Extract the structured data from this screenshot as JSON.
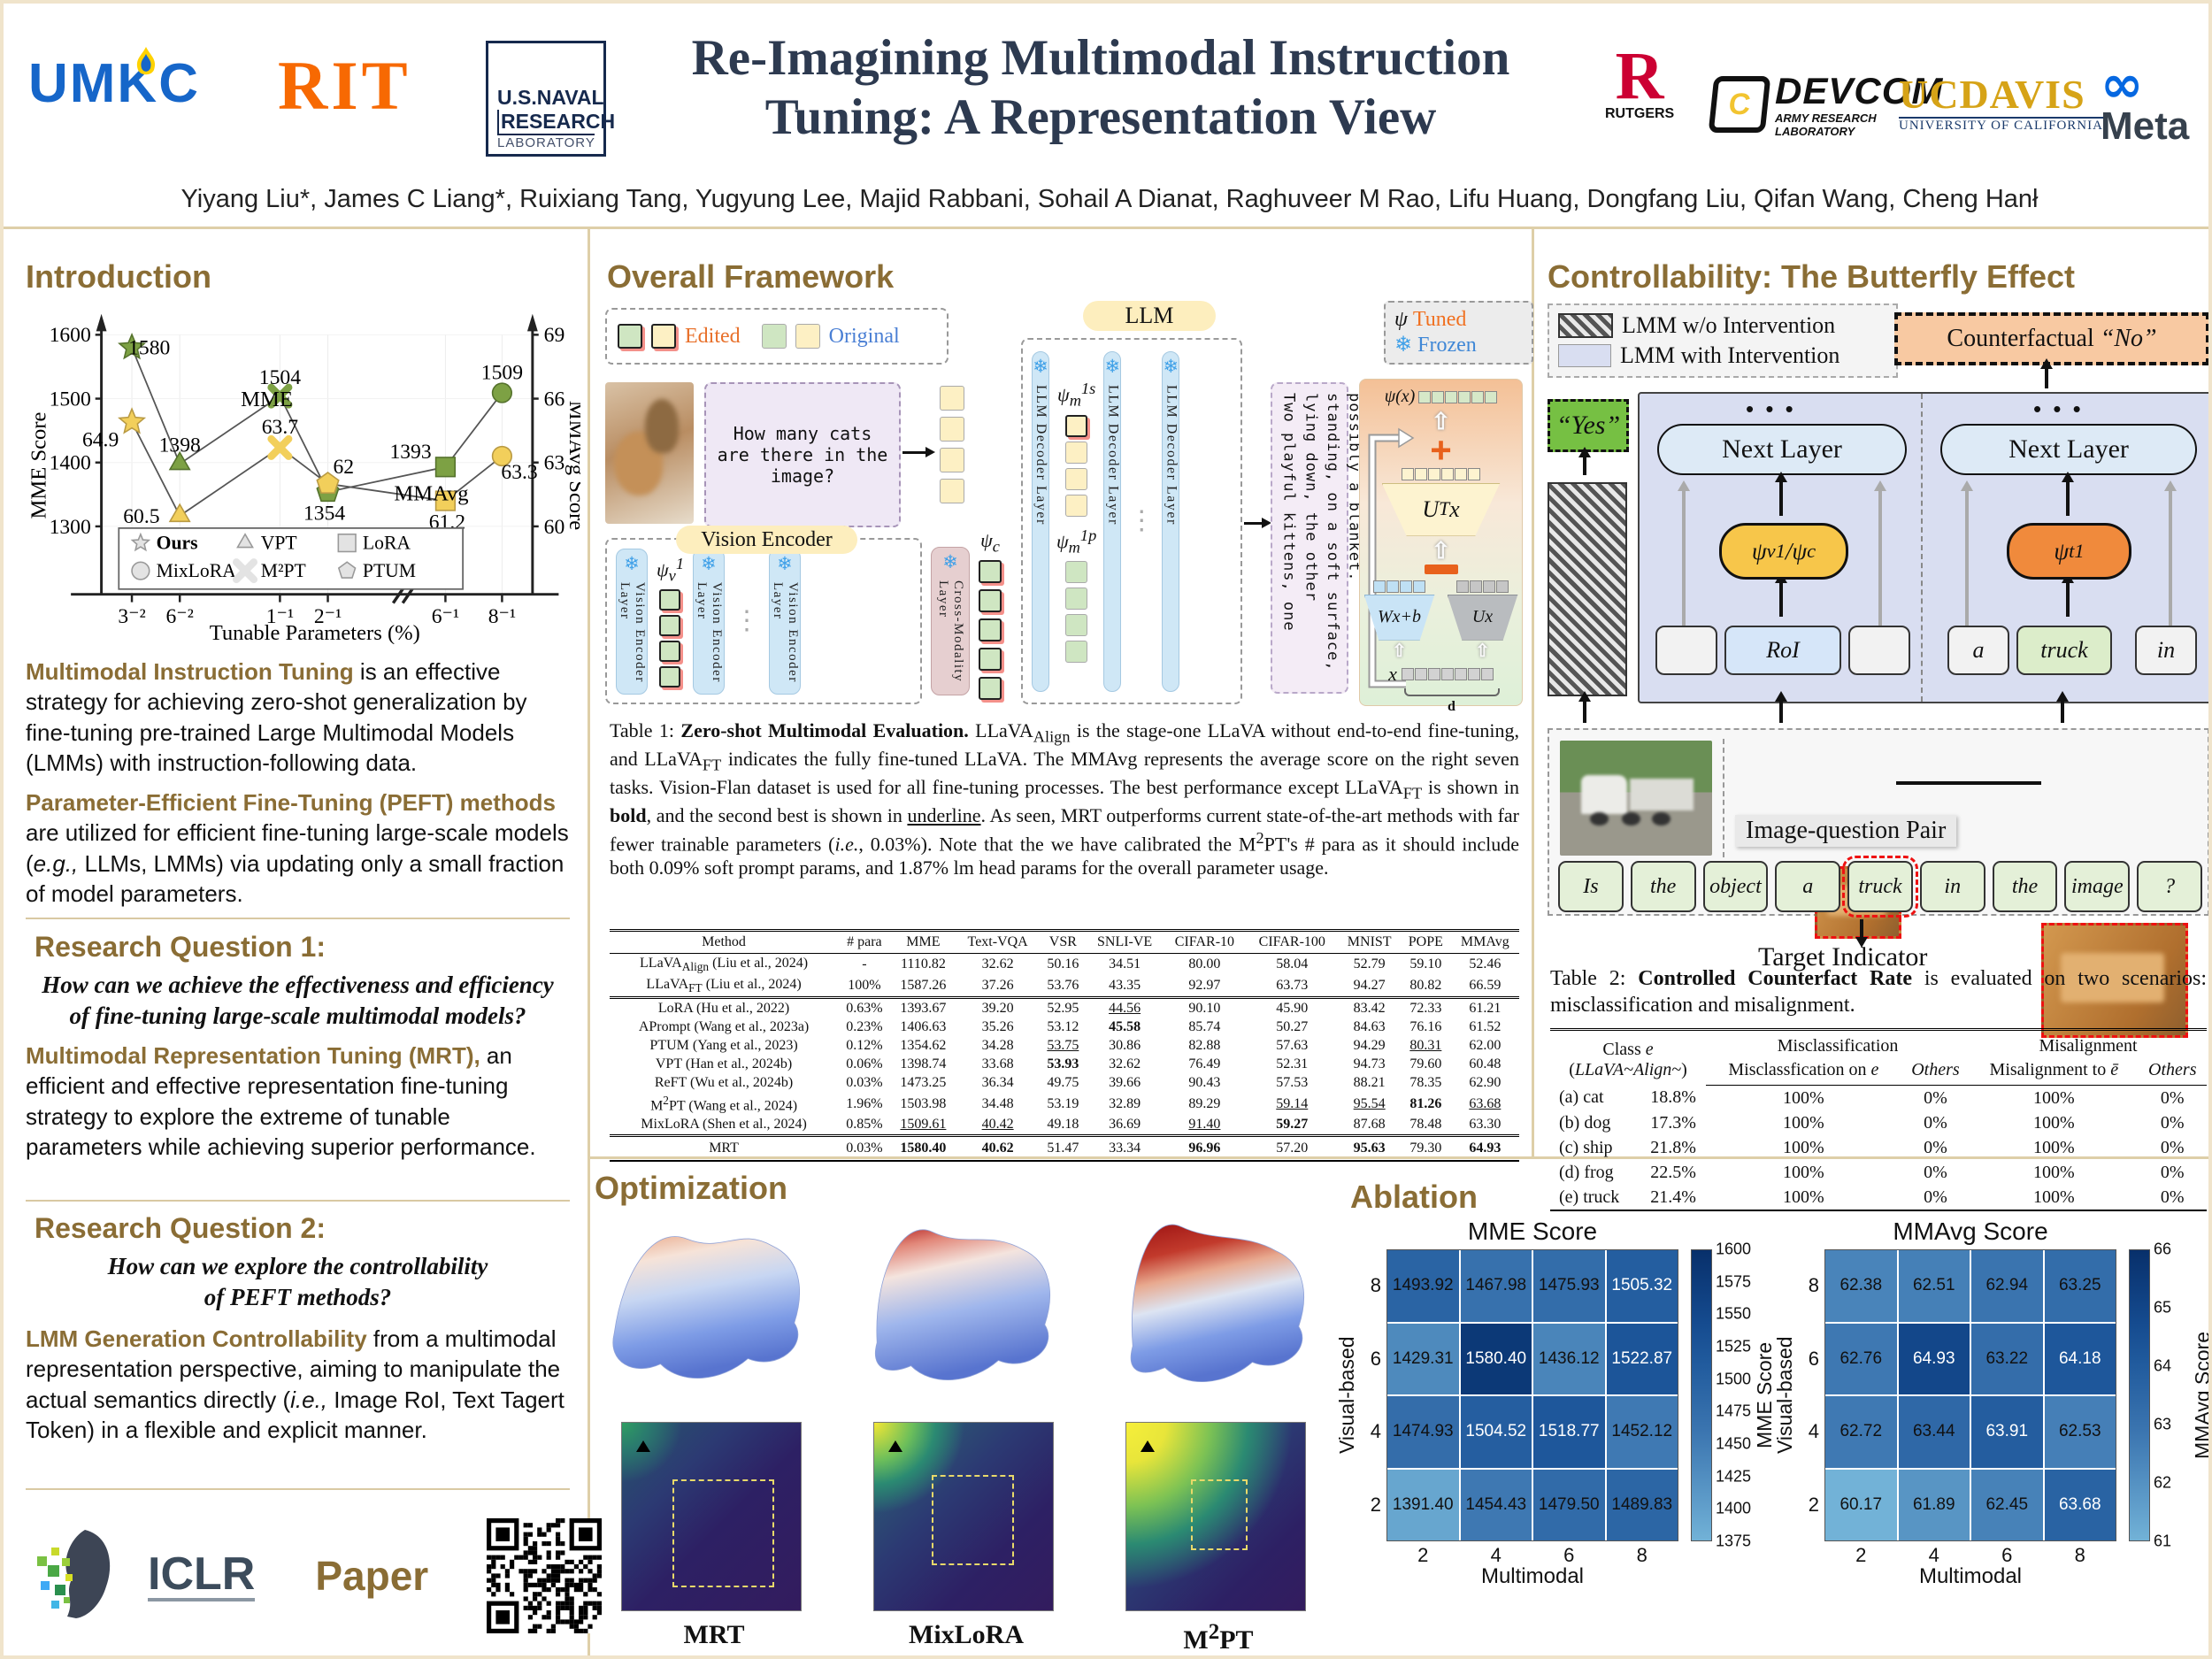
{
  "header": {
    "title_line1": "Re-Imagining Multimodal Instruction",
    "title_line2": "Tuning: A Representation View",
    "authors": "Yiyang Liu*, James C Liang*, Ruixiang Tang, Yugyung Lee, Majid Rabbani, Sohail A Dianat, Raghuveer M Rao, Lifu Huang, Dongfang Liu, Qifan Wang, Cheng Hanł",
    "logos": {
      "umkc": "UMKC",
      "rit": "RIT",
      "nrl": [
        "U.S.NAVAL",
        "RESEARCH",
        "LABORATORY"
      ],
      "rutgers_r": "R",
      "rutgers": "RUTGERS",
      "devcom_c": "C",
      "devcom": "DEVCOM",
      "devcom_sub": "ARMY RESEARCH\nLABORATORY",
      "ucdavis": "UCDAVIS",
      "ucdavis_sub": "UNIVERSITY OF CALIFORNIA",
      "meta_icon": "∞",
      "meta": "Meta"
    }
  },
  "intro": {
    "heading": "Introduction",
    "para1_lead": "Multimodal Instruction Tuning",
    "para1_rest": " is an effective strategy for achieving zero-shot generalization by fine-tuning pre-trained Large Multimodal Models (LMMs) with instruction-following data.",
    "para2_lead": "Parameter-Efficient Fine-Tuning (PEFT) methods",
    "para2_rest": " are utilized for efficient fine-tuning large-scale models (*e.g.,* LLMs, LMMs) via updating only a small fraction of model parameters.",
    "rq1_heading": "Research Question 1:",
    "rq1_text": "How can we achieve the effectiveness and efficiency\nof fine-tuning large-scale multimodal models?",
    "para3_lead": "Multimodal Representation Tuning (MRT),",
    "para3_rest": " an efficient and effective representation fine-tuning strategy to explore the extreme of tunable parameters while achieving superior performance.",
    "rq2_heading": "Research Question 2:",
    "rq2_text": "How can we explore the controllability\nof PEFT methods?",
    "para4_lead": "LMM Generation Controllability",
    "para4_rest": " from a multimodal representation perspective, aiming to manipulate the actual semantics directly (*i.e.,* Image RoI, Text Tagert Token) in a flexible and explicit manner."
  },
  "footer": {
    "iclr": "ICLR",
    "paper": "Paper"
  },
  "framework": {
    "heading": "Overall Framework",
    "legend_edited": "Edited",
    "legend_original": "Original",
    "question": "How many cats\nare there in the\nimage?",
    "vision_pill": "Vision Encoder",
    "vision_layer": "Vision Encoder Layer",
    "cross_layer": "Cross-Modality Layer",
    "llm_pill": "LLM",
    "llm_layer": "LLM Decoder Layer",
    "psi_v": "ψ~v~^1^",
    "psi_c": "ψ~c~",
    "psi_m1s": "ψ~m~^1s^",
    "psi_m1p": "ψ~m~^1p^",
    "psi": "ψ",
    "tuned": "Tuned",
    "frozen": "Frozen",
    "snowflake": "❄",
    "vdots": "⋮",
    "output_text": "Two playful kittens, one lying down, the other standing, on a soft surface, possibly a blanket.",
    "math": {
      "psi_x": "ψ(x)",
      "utx": "U^T^x",
      "wxb": "Wx+b",
      "ux": "Ux",
      "x": "x",
      "d": "d",
      "plus": "+"
    }
  },
  "table1": {
    "caption": "Table 1: **Zero-shot Multimodal Evaluation.** LLaVA~Align~ is the stage-one LLaVA without end-to-end fine-tuning, and LLaVA~FT~ indicates the fully fine-tuned LLaVA. The MMAvg represents the average score on the right seven tasks. Vision-Flan dataset is used for all fine-tuning processes. The best performance except LLaVA~FT~ is shown in **bold**, and the second best is shown in __underline__. As seen, MRT outperforms current state-of-the-art methods with far fewer trainable parameters (*i.e.*, 0.03%). Note that the we have calibrated the M^2^PT's # para as it should include both 0.09% soft prompt params, and 1.87% lm head params for the overall parameter usage.",
    "headers": [
      "Method",
      "# para",
      "MME",
      "Text-VQA",
      "VSR",
      "SNLI-VE",
      "CIFAR-10",
      "CIFAR-100",
      "MNIST",
      "POPE",
      "MMAvg"
    ],
    "groups": [
      [
        [
          "LLaVA~Align~ (Liu et al., 2024)",
          "-",
          "1110.82",
          "32.62",
          "50.16",
          "34.51",
          "80.00",
          "58.04",
          "52.79",
          "59.10",
          "52.46"
        ],
        [
          "LLaVA~FT~ (Liu et al., 2024)",
          "100%",
          "1587.26",
          "37.26",
          "53.76",
          "43.35",
          "92.97",
          "63.73",
          "94.27",
          "80.82",
          "66.59"
        ]
      ],
      [
        [
          "LoRA (Hu et al., 2022)",
          "0.63%",
          "1393.67",
          "39.20",
          "52.95",
          "44.56|u",
          "90.10",
          "45.90",
          "83.42",
          "72.33",
          "61.21"
        ],
        [
          "APrompt (Wang et al., 2023a)",
          "0.23%",
          "1406.63",
          "35.26",
          "53.12",
          "45.58|b",
          "85.74",
          "50.27",
          "84.63",
          "76.16",
          "61.52"
        ],
        [
          "PTUM (Yang et al., 2023)",
          "0.12%",
          "1354.62",
          "34.28",
          "53.75|u",
          "30.86",
          "82.88",
          "57.63",
          "94.29",
          "80.31|u",
          "62.00"
        ],
        [
          "VPT (Han et al., 2024b)",
          "0.06%",
          "1398.74",
          "33.68",
          "53.93|b",
          "32.62",
          "76.49",
          "52.31",
          "94.73",
          "79.60",
          "60.48"
        ],
        [
          "ReFT (Wu et al., 2024b)",
          "0.03%",
          "1473.25",
          "36.34",
          "49.75",
          "39.66",
          "90.43",
          "57.53",
          "88.21",
          "78.35",
          "62.90"
        ],
        [
          "M^2^PT (Wang et al., 2024)",
          "1.96%",
          "1503.98",
          "34.48",
          "53.19",
          "32.89",
          "89.29",
          "59.14|u",
          "95.54|u",
          "81.26|b",
          "63.68|u"
        ],
        [
          "MixLoRA (Shen et al., 2024)",
          "0.85%",
          "1509.61|u",
          "40.42|u",
          "49.18",
          "36.69",
          "91.40|u",
          "59.27|b",
          "87.68",
          "78.48",
          "63.30"
        ]
      ],
      [
        [
          "MRT",
          "0.03%",
          "1580.40|b",
          "40.62|b",
          "51.47",
          "33.34",
          "96.96|b",
          "57.20",
          "95.63|b",
          "79.30",
          "64.93|b"
        ]
      ]
    ]
  },
  "control": {
    "heading": "Controllability: The Butterfly Effect",
    "legend_wo": "LMM w/o Intervention",
    "legend_with": "LMM with Intervention",
    "counterfactual": "Counterfactual *“No”*",
    "yes": "“Yes”",
    "next_layer": "Next Layer",
    "psi_vc": "ψ~v~^1^/ψ~c~",
    "psi_t": "ψ~t~^1^",
    "roi": "RoI",
    "dots": "• • •",
    "tok_a": "a",
    "tok_truck": "truck",
    "tok_in": "in",
    "pair_label": "Image-question Pair",
    "question_tokens": [
      "Is",
      "the",
      "object",
      "a",
      "truck",
      "in",
      "the",
      "image",
      "?"
    ],
    "target_index": 4,
    "target_label": "Target Indicator"
  },
  "table2": {
    "caption": "Table 2: **Controlled Counterfact Rate** is evaluated on two scenarios: misclassification and misalignment.",
    "header1": [
      "Class *e*\n(*LLaVA~Align~*)",
      "Misclassification",
      "Misalignment"
    ],
    "header2": [
      "Misclassfication on *e*",
      "*Others*",
      "Misalignment to *ē*",
      "*Others*"
    ],
    "rows": [
      [
        "(a) cat",
        "18.8%",
        "100%",
        "0%",
        "100%",
        "0%"
      ],
      [
        "(b) dog",
        "17.3%",
        "100%",
        "0%",
        "100%",
        "0%"
      ],
      [
        "(c) ship",
        "21.8%",
        "100%",
        "0%",
        "100%",
        "0%"
      ],
      [
        "(d) frog",
        "22.5%",
        "100%",
        "0%",
        "100%",
        "0%"
      ],
      [
        "(e) truck",
        "21.4%",
        "100%",
        "0%",
        "100%",
        "0%"
      ]
    ]
  },
  "optimization": {
    "heading": "Optimization",
    "labels": [
      "MRT",
      "MixLo­RA",
      "M^2^PT"
    ]
  },
  "ablation": {
    "heading": "Ablation"
  },
  "chart_data": [
    {
      "id": "intro-chart",
      "type": "line",
      "title": "",
      "xlabel": "Tunable Parameters (%)",
      "ylabel_left": "MME Score",
      "ylabel_right": "MMAvg Score",
      "x_ticks": [
        "3⁻²",
        "6⁻²",
        "1⁻¹",
        "2⁻¹",
        "6⁻¹",
        "8⁻¹"
      ],
      "y_left_ticks": [
        1300,
        1400,
        1500,
        1600
      ],
      "y_right_ticks": [
        60,
        63,
        66,
        69
      ],
      "ylim_left": [
        1300,
        1600
      ],
      "ylim_right": [
        60,
        69
      ],
      "methods": [
        "Ours",
        "VPT",
        "M²PT",
        "PTUM",
        "LoRA",
        "MixLoRA"
      ],
      "markers": [
        "star",
        "triangle",
        "x",
        "pentagon",
        "square",
        "circle"
      ],
      "series": [
        {
          "name": "MME",
          "axis": "left",
          "color": "#7da144",
          "stroke": "#55722c",
          "values": [
            1580,
            1398,
            1504,
            1354,
            1393,
            1509
          ]
        },
        {
          "name": "MMAvg",
          "axis": "right",
          "color": "#f2cf5b",
          "stroke": "#b99a43",
          "values": [
            64.9,
            60.5,
            63.7,
            62.0,
            61.2,
            63.3
          ]
        }
      ],
      "legend": [
        [
          "Ours",
          "star"
        ],
        [
          "VPT",
          "triangle"
        ],
        [
          "LoRA",
          "square"
        ],
        [
          "MixLoRA",
          "circle"
        ],
        [
          "M²PT",
          "x"
        ],
        [
          "PTUM",
          "pentagon"
        ]
      ]
    },
    {
      "id": "hm1",
      "type": "heatmap",
      "title": "MME Score",
      "xlabel": "Multimodal",
      "ylabel": "Visual-based",
      "x_ticks": [
        "2",
        "4",
        "6",
        "8"
      ],
      "y_ticks": [
        "8",
        "6",
        "4",
        "2"
      ],
      "values": [
        [
          1493.92,
          1467.98,
          1475.93,
          1505.32
        ],
        [
          1429.31,
          1580.4,
          1436.12,
          1522.87
        ],
        [
          1474.93,
          1504.52,
          1518.77,
          1452.12
        ],
        [
          1391.4,
          1454.43,
          1479.5,
          1489.83
        ]
      ],
      "vmin": 1375,
      "vmax": 1600,
      "colorbar_label": "MME Score",
      "colorbar_ticks": [
        1600,
        1575,
        1550,
        1525,
        1500,
        1475,
        1450,
        1425,
        1400,
        1375
      ]
    },
    {
      "id": "hm2",
      "type": "heatmap",
      "title": "MMAvg Score",
      "xlabel": "Multimodal",
      "ylabel": "Visual-based",
      "x_ticks": [
        "2",
        "4",
        "6",
        "8"
      ],
      "y_ticks": [
        "8",
        "6",
        "4",
        "2"
      ],
      "values": [
        [
          62.38,
          62.51,
          62.94,
          63.25
        ],
        [
          62.76,
          64.93,
          63.22,
          64.18
        ],
        [
          62.72,
          63.44,
          63.91,
          62.53
        ],
        [
          60.17,
          61.89,
          62.45,
          63.68
        ]
      ],
      "vmin": 61,
      "vmax": 66,
      "colorbar_label": "MMAvg Score",
      "colorbar_ticks": [
        66,
        65,
        64,
        63,
        62,
        61
      ]
    }
  ]
}
